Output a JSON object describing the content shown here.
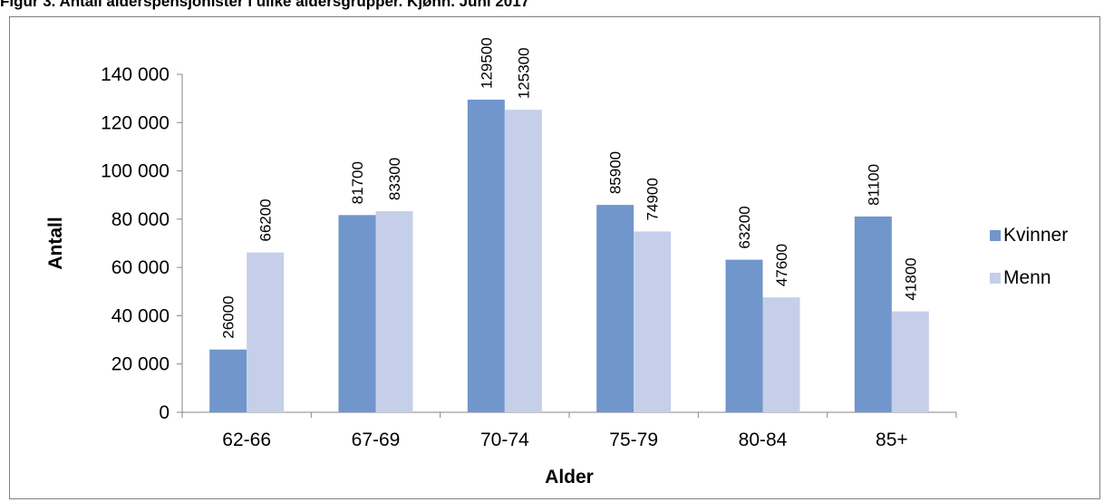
{
  "figure": {
    "title": "Figur 3. Antall alderspensjonister i ulike aldersgrupper. Kjønn. Juni 2017"
  },
  "chart_data": {
    "type": "bar",
    "categories": [
      "62-66",
      "67-69",
      "70-74",
      "75-79",
      "80-84",
      "85+"
    ],
    "series": [
      {
        "name": "Kvinner",
        "values": [
          26000,
          81700,
          129500,
          85900,
          63200,
          81100
        ],
        "color": "#7096cc"
      },
      {
        "name": "Menn",
        "values": [
          66200,
          83300,
          125300,
          74900,
          47600,
          41800
        ],
        "color": "#c5cfe9"
      }
    ],
    "xlabel": "Alder",
    "ylabel": "Antall",
    "ylim": [
      0,
      140000
    ],
    "yticks": [
      0,
      20000,
      40000,
      60000,
      80000,
      100000,
      120000,
      140000
    ],
    "ytick_labels": [
      "0",
      "20 000",
      "40 000",
      "60 000",
      "80 000",
      "100 000",
      "120 000",
      "140 000"
    ],
    "grid": false,
    "legend_position": "right"
  }
}
